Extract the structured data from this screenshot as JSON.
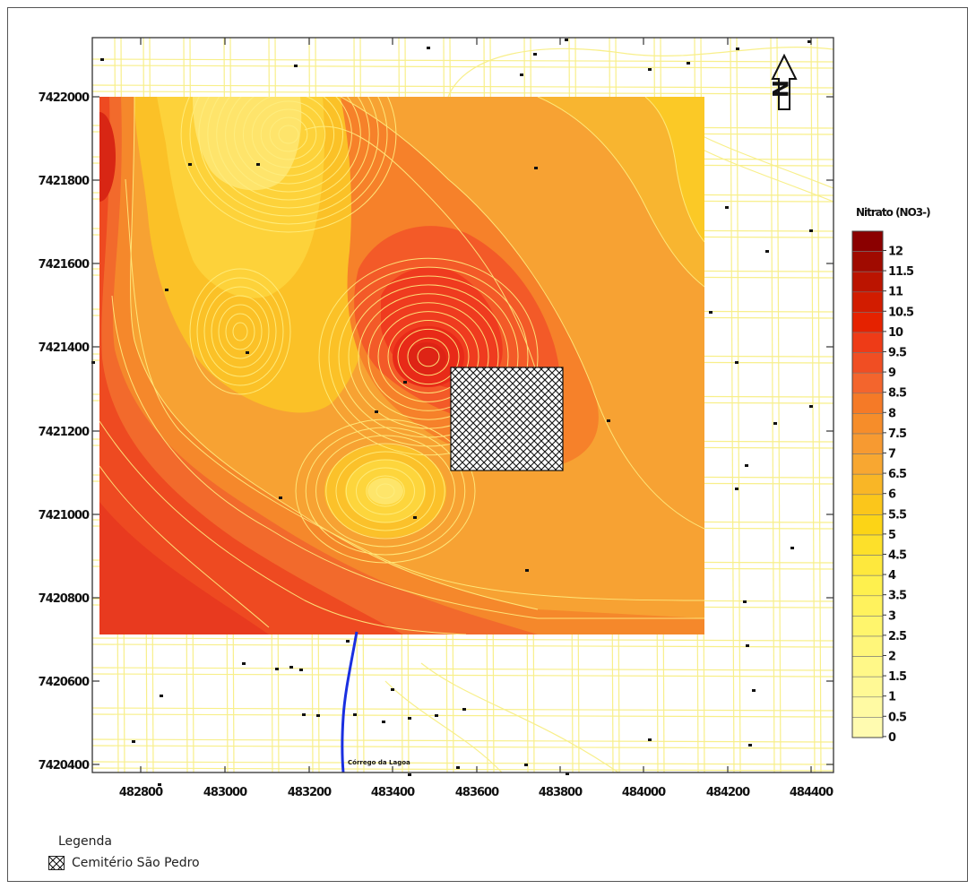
{
  "map": {
    "north_arrow_label": "N",
    "stream_label": "Córrego da Lagoa",
    "x_ticks": [
      "482800",
      "483000",
      "483200",
      "483400",
      "483600",
      "483800",
      "484000",
      "484200",
      "484400"
    ],
    "y_ticks": [
      "7422000",
      "7421800",
      "7421600",
      "7421400",
      "7421200",
      "7421000",
      "7420800",
      "7420600",
      "7420400"
    ]
  },
  "colorbar": {
    "title": "Nitrato (NO3-)",
    "labels": [
      "12",
      "11.5",
      "11",
      "10.5",
      "10",
      "9.5",
      "9",
      "8.5",
      "8",
      "7.5",
      "7",
      "6.5",
      "6",
      "5.5",
      "5",
      "4.5",
      "4",
      "3.5",
      "3",
      "2.5",
      "2",
      "1.5",
      "1",
      "0.5",
      "0"
    ],
    "colors": [
      "#8b0000",
      "#a00a00",
      "#bb1400",
      "#d21c00",
      "#e52200",
      "#ee3b17",
      "#f04e23",
      "#f3652d",
      "#f57a27",
      "#f68d2a",
      "#f79a31",
      "#f8a731",
      "#f9b626",
      "#fbc61b",
      "#fcd416",
      "#fde02a",
      "#fee83d",
      "#fef04e",
      "#fff25d",
      "#fff56c",
      "#fff67a",
      "#fff888",
      "#fff995",
      "#fffaa3",
      "#fffbb0"
    ]
  },
  "legend": {
    "heading": "Legenda",
    "cemetery_label": "Cemitério São Pedro"
  },
  "colors": {
    "contour_line": "#ffee80",
    "road_line": "#f8ef8a",
    "stream": "#1a2fe0"
  }
}
